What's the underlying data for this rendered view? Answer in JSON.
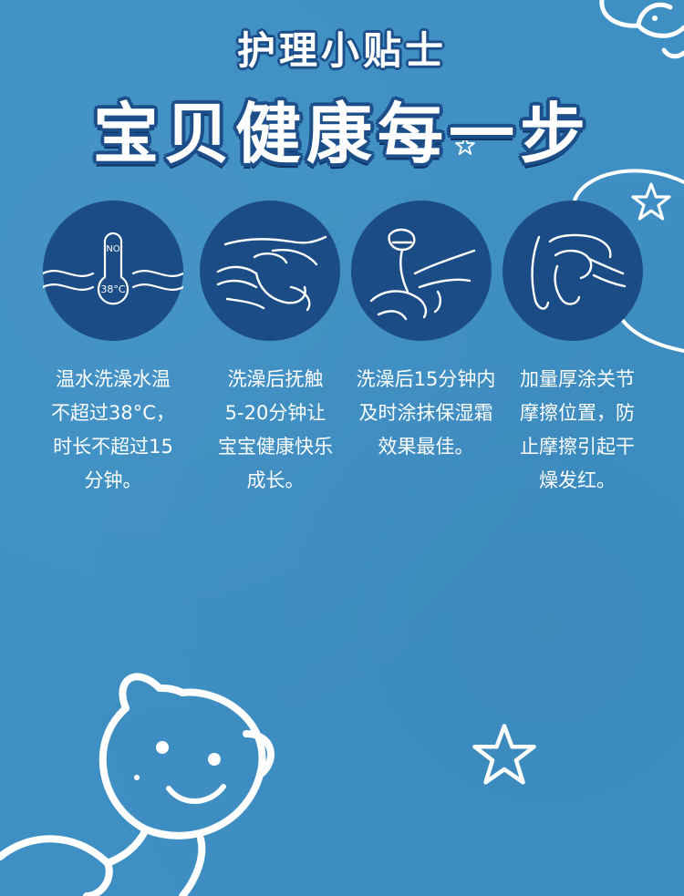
{
  "header": {
    "subtitle": "护理小贴士",
    "title": "宝贝健康每一步"
  },
  "tips": [
    {
      "icon": "thermometer-icon",
      "thermometer_label_top": "NO",
      "thermometer_label_temp": "38°C",
      "lines": [
        "温水洗澡水温",
        "不超过38°C，",
        "时长不超过15",
        "分钟。"
      ]
    },
    {
      "icon": "massage-hands-icon",
      "lines": [
        "洗澡后抚触",
        "5-20分钟让",
        "宝宝健康快乐",
        "成长。"
      ]
    },
    {
      "icon": "apply-lotion-icon",
      "lines": [
        "洗澡后15分钟内",
        "及时涂抹保湿霜",
        "效果最佳。"
      ]
    },
    {
      "icon": "rub-joint-icon",
      "lines": [
        "加量厚涂关节",
        "摩擦位置，防",
        "止摩擦引起干",
        "燥发红。"
      ]
    }
  ],
  "colors": {
    "background": "#3e8fc4",
    "circle": "#1b4c86",
    "outline": "#1c4f8a",
    "text": "#ffffff"
  }
}
